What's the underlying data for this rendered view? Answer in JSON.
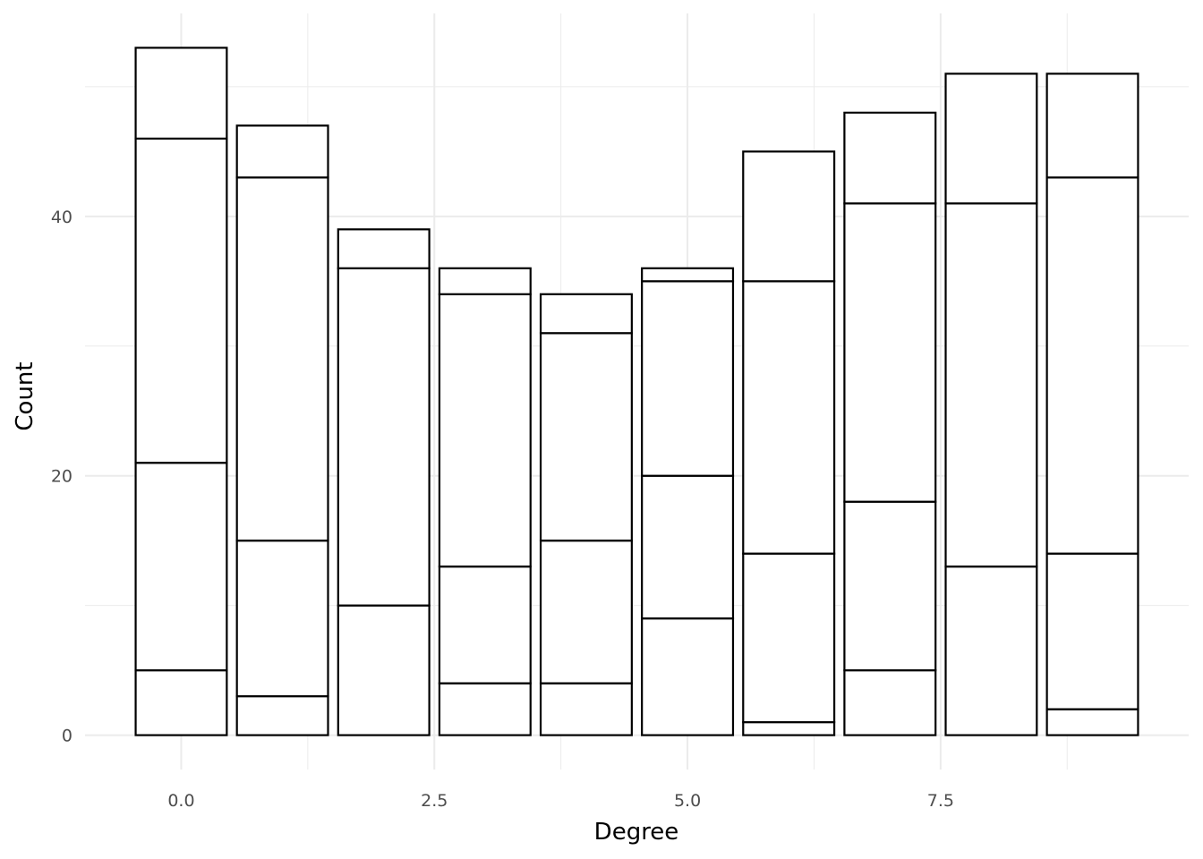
{
  "chart_data": {
    "type": "bar",
    "stacked": true,
    "xlabel": "Degree",
    "ylabel": "Count",
    "x": [
      0,
      1,
      2,
      3,
      4,
      5,
      6,
      7,
      8,
      9
    ],
    "stack_boundaries": [
      [
        0,
        5,
        21,
        46,
        53
      ],
      [
        0,
        3,
        15,
        43,
        47
      ],
      [
        0,
        10,
        36,
        39
      ],
      [
        0,
        4,
        13,
        34,
        36
      ],
      [
        0,
        4,
        15,
        31,
        34
      ],
      [
        0,
        9,
        20,
        35,
        36
      ],
      [
        0,
        1,
        14,
        35,
        45
      ],
      [
        0,
        5,
        18,
        41,
        48
      ],
      [
        0,
        13,
        41,
        51
      ],
      [
        0,
        2,
        14,
        43,
        51
      ]
    ],
    "xlim": [
      -0.95,
      9.95
    ],
    "ylim": [
      -2.65,
      55.65
    ],
    "x_ticks": [
      0.0,
      2.5,
      5.0,
      7.5
    ],
    "x_tick_labels": [
      "0.0",
      "2.5",
      "5.0",
      "7.5"
    ],
    "y_ticks": [
      0,
      20,
      40
    ],
    "y_tick_labels": [
      "0",
      "20",
      "40"
    ],
    "x_minor_ticks": [
      1.25,
      3.75,
      6.25,
      8.75
    ],
    "y_minor_ticks": [
      10,
      30,
      50
    ],
    "bar_width": 0.9,
    "grid": true,
    "colors": {
      "fill": "#ffffff",
      "outline": "#000000",
      "grid": "#ebebeb"
    }
  }
}
